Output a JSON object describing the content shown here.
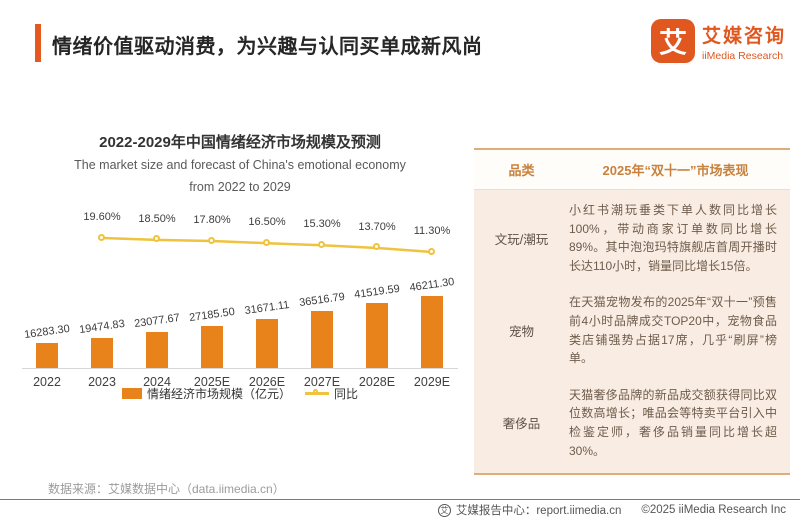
{
  "header": {
    "title": "情绪价值驱动消费，为兴趣与认同买单成新风尚",
    "logo": {
      "mark": "艾",
      "name_cn": "艾媒咨询",
      "name_en": "iiMedia Research"
    }
  },
  "chart_data": {
    "type": "bar",
    "title": "2022-2029年中国情绪经济市场规模及预测",
    "subtitle_line1": "The market size and forecast of China's emotional economy",
    "subtitle_line2": "from 2022 to 2029",
    "categories": [
      "2022",
      "2023",
      "2024",
      "2025E",
      "2026E",
      "2027E",
      "2028E",
      "2029E"
    ],
    "series": [
      {
        "name": "情绪经济市场规模（亿元）",
        "type": "bar",
        "color": "#E8821A",
        "values": [
          16283.3,
          19474.83,
          23077.67,
          27185.5,
          31671.11,
          36516.79,
          41519.59,
          46211.3
        ],
        "value_labels": [
          "16283.30",
          "19474.83",
          "23077.67",
          "27185.50",
          "31671.11",
          "36516.79",
          "41519.59",
          "46211.30"
        ]
      },
      {
        "name": "同比",
        "type": "line",
        "color": "#EFC33D",
        "categories": [
          "2023",
          "2024",
          "2025E",
          "2026E",
          "2027E",
          "2028E",
          "2029E"
        ],
        "values": [
          19.6,
          18.5,
          17.8,
          16.5,
          15.3,
          13.7,
          11.3
        ],
        "value_labels": [
          "19.60%",
          "18.50%",
          "17.80%",
          "16.50%",
          "15.30%",
          "13.70%",
          "11.30%"
        ]
      }
    ],
    "ylim": [
      0,
      50000
    ],
    "grid": false,
    "legend_position": "bottom"
  },
  "table": {
    "headers": [
      "品类",
      "2025年“双十一”市场表现"
    ],
    "rows": [
      {
        "category": "文玩/潮玩",
        "description": "小红书潮玩垂类下单人数同比增长100%，带动商家订单数同比增长89%。其中泡泡玛特旗舰店首周开播时长达110小时，销量同比增长15倍。"
      },
      {
        "category": "宠物",
        "description": "在天猫宠物发布的2025年“双十一”预售前4小时品牌成交TOP20中，宠物食品类店铺强势占据17席，几乎“刷屏”榜单。"
      },
      {
        "category": "奢侈品",
        "description": "天猫奢侈品牌的新品成交额获得同比双位数高增长；唯品会等特卖平台引入中检鉴定师，奢侈品销量同比增长超30%。"
      }
    ]
  },
  "footer": {
    "source": "数据来源：艾媒数据中心（data.iimedia.cn）",
    "report_center_icon": "艾",
    "report_center": "艾媒报告中心：report.iimedia.cn",
    "copyright": "©2025  iiMedia Research Inc"
  }
}
